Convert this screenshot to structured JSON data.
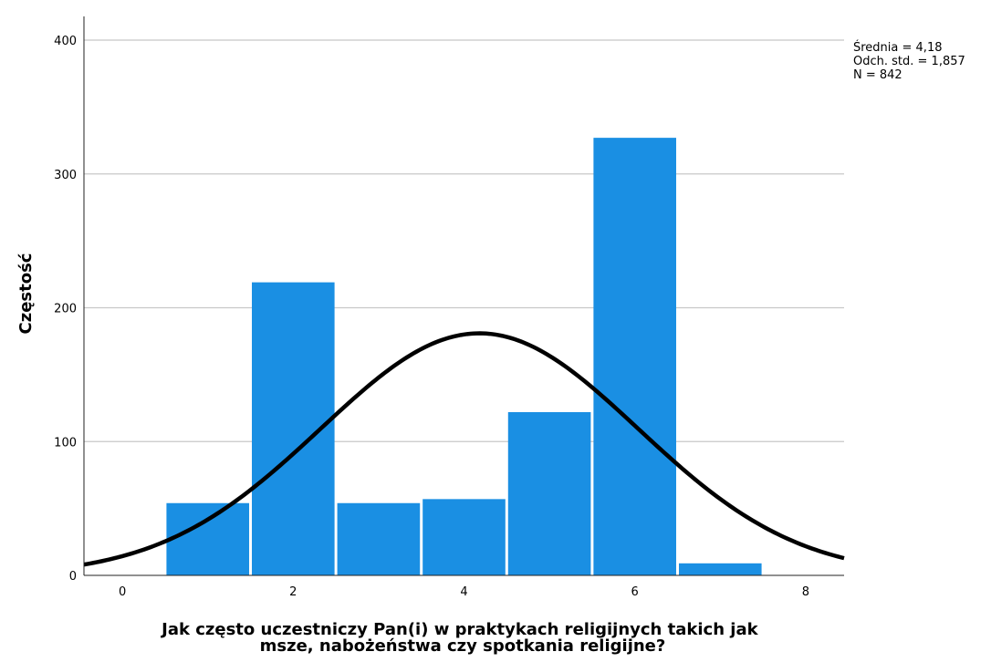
{
  "chart_data": {
    "type": "bar",
    "subtype": "histogram",
    "xlabel": "Jak często uczestniczy Pan(i) w praktykach religijnych takich jak msze, nabożeństwa czy spotkania religijne?",
    "ylabel": "Częstość",
    "xlim": [
      -0.45,
      8.45
    ],
    "ylim": [
      0,
      400
    ],
    "xticks": [
      "0",
      "2",
      "4",
      "6",
      "8"
    ],
    "yticks": [
      "0",
      "100",
      "200",
      "300",
      "400"
    ],
    "grid": "horizontal",
    "bars": [
      {
        "x": 1,
        "value": 54
      },
      {
        "x": 2,
        "value": 219
      },
      {
        "x": 3,
        "value": 54
      },
      {
        "x": 4,
        "value": 57
      },
      {
        "x": 5,
        "value": 122
      },
      {
        "x": 6,
        "value": 327
      },
      {
        "x": 7,
        "value": 9
      }
    ],
    "bar_color": "#1a8fe3",
    "curve_color": "#000000",
    "normal_curve": {
      "mean": 4.18,
      "sd": 1.857,
      "n": 842,
      "bin_width": 1
    },
    "stats": {
      "mean_label": "Średnia = 4,18",
      "sd_label": "Odch. std. = 1,857",
      "n_label": "N = 842"
    }
  }
}
